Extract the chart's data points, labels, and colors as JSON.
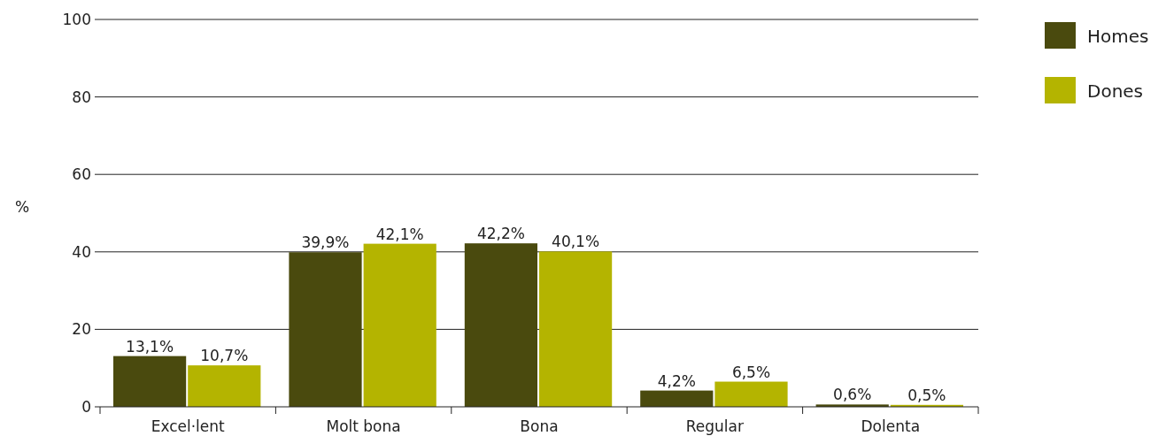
{
  "chart_data": {
    "type": "bar",
    "ylabel": "%",
    "categories": [
      "Excel·lent",
      "Molt bona",
      "Bona",
      "Regular",
      "Dolenta"
    ],
    "series": [
      {
        "name": "Homes",
        "color": "#4a4a0e",
        "values": [
          13.1,
          39.9,
          42.2,
          4.2,
          0.6
        ],
        "value_labels": [
          "13,1%",
          "39,9%",
          "42,2%",
          "4,2%",
          "0,6%"
        ]
      },
      {
        "name": "Dones",
        "color": "#b4b400",
        "values": [
          10.7,
          42.1,
          40.1,
          6.5,
          0.5
        ],
        "value_labels": [
          "10,7%",
          "42,1%",
          "40,1%",
          "6,5%",
          "0,5%"
        ]
      }
    ],
    "ylim": [
      0,
      100
    ],
    "yticks": [
      0,
      20,
      40,
      60,
      80,
      100
    ],
    "grid": "y",
    "legend": "top right"
  }
}
